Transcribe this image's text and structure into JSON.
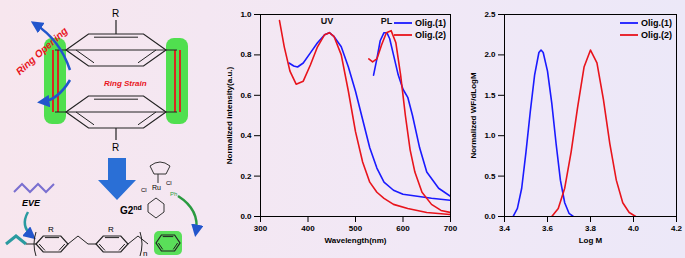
{
  "chart_data": [
    {
      "type": "line",
      "x_label": "Wavelength(nm)",
      "y_label": "Normalized intensity(a.u.)",
      "xlim": [
        300,
        700
      ],
      "xticks": [
        300,
        400,
        500,
        600,
        700
      ],
      "ylim": [
        0,
        1.0
      ],
      "yticks": [
        {
          "value": 0,
          "label": "0.0"
        },
        0.2,
        0.4,
        0.6,
        0.8,
        {
          "value": 1.0,
          "label": "1.0"
        }
      ],
      "grid": false,
      "legend": "upper right",
      "annotations": [
        {
          "text": "UV",
          "x": 440,
          "y": 0.965
        },
        {
          "text": "PL",
          "x": 565,
          "y": 0.965
        }
      ],
      "series": [
        {
          "name": "Olig.(1)",
          "color": "#1a1aff",
          "x": [
            360,
            370,
            378,
            390,
            405,
            420,
            435,
            445,
            455,
            470,
            485,
            500,
            515,
            530,
            545,
            560,
            580,
            600,
            630,
            660,
            700,
            null,
            538,
            545,
            552,
            560,
            566,
            572,
            580,
            590,
            600,
            610,
            620,
            635,
            650,
            675,
            700
          ],
          "values": [
            0.76,
            0.745,
            0.74,
            0.76,
            0.81,
            0.86,
            0.9,
            0.91,
            0.89,
            0.84,
            0.74,
            0.62,
            0.48,
            0.34,
            0.24,
            0.17,
            0.13,
            0.11,
            0.1,
            0.09,
            0.08,
            null,
            0.7,
            0.78,
            0.87,
            0.91,
            0.91,
            0.88,
            0.8,
            0.7,
            0.63,
            0.59,
            0.5,
            0.34,
            0.22,
            0.14,
            0.1
          ]
        },
        {
          "name": "Olig.(2)",
          "color": "#e8141c",
          "x": [
            340,
            350,
            362,
            375,
            390,
            405,
            420,
            435,
            445,
            455,
            470,
            485,
            500,
            515,
            530,
            545,
            560,
            580,
            610,
            650,
            700,
            null,
            528,
            536,
            545,
            555,
            565,
            575,
            585,
            595,
            605,
            615,
            625,
            640,
            660,
            680,
            700
          ],
          "values": [
            0.97,
            0.84,
            0.72,
            0.655,
            0.67,
            0.75,
            0.84,
            0.9,
            0.91,
            0.89,
            0.8,
            0.62,
            0.42,
            0.27,
            0.17,
            0.12,
            0.09,
            0.06,
            0.04,
            0.02,
            0.01,
            null,
            0.78,
            0.765,
            0.78,
            0.85,
            0.91,
            0.92,
            0.86,
            0.7,
            0.5,
            0.33,
            0.22,
            0.12,
            0.06,
            0.03,
            0.02
          ]
        }
      ]
    },
    {
      "type": "line",
      "x_label": "Log M",
      "y_label": "Normalized WF/dLogM",
      "xlim": [
        3.4,
        4.2
      ],
      "xticks": [
        3.4,
        3.6,
        3.8,
        {
          "value": 4.0,
          "label": "4.0"
        },
        4.2
      ],
      "ylim": [
        0,
        2.5
      ],
      "yticks": [
        {
          "value": 0,
          "label": "0.0"
        },
        0.5,
        {
          "value": 1.0,
          "label": "1.0"
        },
        1.5,
        {
          "value": 2.0,
          "label": "2.0"
        },
        2.5
      ],
      "grid": false,
      "legend": "upper right",
      "series": [
        {
          "name": "Olig.(1)",
          "color": "#1a1aff",
          "x": [
            3.44,
            3.46,
            3.48,
            3.5,
            3.52,
            3.54,
            3.56,
            3.57,
            3.58,
            3.6,
            3.62,
            3.64,
            3.66,
            3.68,
            3.7,
            3.72
          ],
          "values": [
            0.0,
            0.1,
            0.35,
            0.8,
            1.3,
            1.75,
            2.03,
            2.06,
            2.03,
            1.8,
            1.4,
            0.9,
            0.45,
            0.17,
            0.04,
            0.0
          ]
        },
        {
          "name": "Olig.(2)",
          "color": "#e8141c",
          "x": [
            3.62,
            3.65,
            3.68,
            3.71,
            3.74,
            3.77,
            3.8,
            3.83,
            3.86,
            3.89,
            3.92,
            3.95,
            3.98,
            4.01
          ],
          "values": [
            0.0,
            0.1,
            0.35,
            0.8,
            1.35,
            1.85,
            2.06,
            1.9,
            1.45,
            0.9,
            0.45,
            0.17,
            0.05,
            0.0
          ]
        }
      ]
    }
  ],
  "diagram": {
    "substituent": "R",
    "ring_opening": "Ring Opening",
    "ring_strain": "Ring Strain",
    "monomer": "EVE",
    "catalyst": {
      "main": "G2",
      "sup": "nd"
    },
    "catalyst_atoms": [
      "Ru",
      "Cl",
      "Cl",
      "Ph"
    ],
    "repeat": "n"
  }
}
